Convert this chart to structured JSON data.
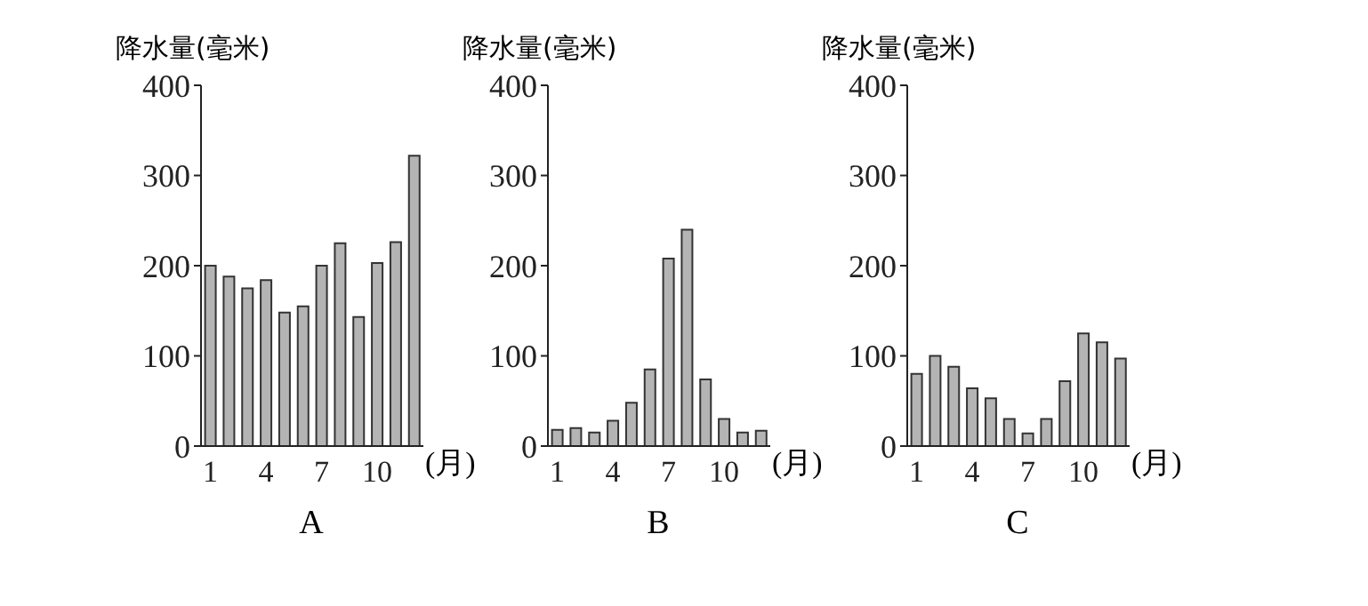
{
  "chart_data": [
    {
      "type": "bar",
      "title": "A",
      "ylabel": "降水量(毫米)",
      "xlabel": "(月)",
      "categories": [
        "1",
        null,
        null,
        "4",
        null,
        null,
        "7",
        null,
        null,
        "10",
        null,
        null
      ],
      "values": [
        200,
        188,
        175,
        184,
        148,
        155,
        200,
        225,
        143,
        203,
        226,
        322
      ],
      "color": "#b4b4b4",
      "ylim": [
        0,
        400
      ],
      "yticks": [
        0,
        100,
        200,
        300,
        400
      ],
      "grid": false,
      "legend": false
    },
    {
      "type": "bar",
      "title": "B",
      "ylabel": "降水量(毫米)",
      "xlabel": "(月)",
      "categories": [
        "1",
        null,
        null,
        "4",
        null,
        null,
        "7",
        null,
        null,
        "10",
        null,
        null
      ],
      "values": [
        18,
        20,
        15,
        28,
        48,
        85,
        208,
        240,
        74,
        30,
        15,
        17
      ],
      "color": "#b4b4b4",
      "ylim": [
        0,
        400
      ],
      "yticks": [
        0,
        100,
        200,
        300,
        400
      ],
      "grid": false,
      "legend": false
    },
    {
      "type": "bar",
      "title": "C",
      "ylabel": "降水量(毫米)",
      "xlabel": "(月)",
      "categories": [
        "1",
        null,
        null,
        "4",
        null,
        null,
        "7",
        null,
        null,
        "10",
        null,
        null
      ],
      "values": [
        80,
        100,
        88,
        64,
        53,
        30,
        14,
        30,
        72,
        125,
        115,
        97
      ],
      "color": "#b4b4b4",
      "ylim": [
        0,
        400
      ],
      "yticks": [
        0,
        100,
        200,
        300,
        400
      ],
      "grid": false,
      "legend": false
    }
  ]
}
